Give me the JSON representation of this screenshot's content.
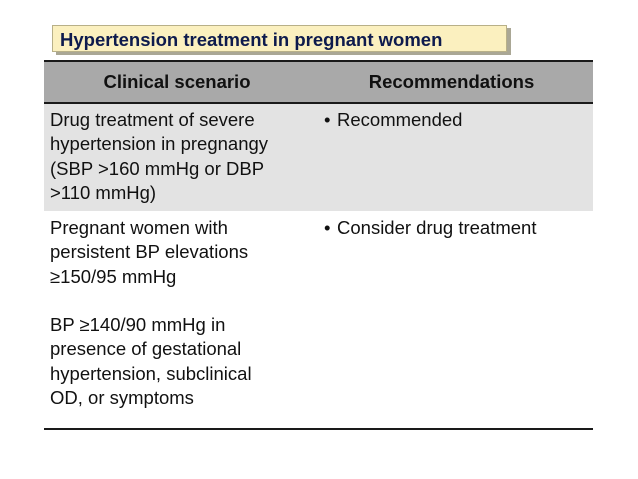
{
  "title": "Hypertension treatment in pregnant women",
  "table": {
    "headers": [
      "Clinical scenario",
      "Recommendations"
    ],
    "rows": [
      {
        "scenario_lines": [
          "Drug treatment of severe",
          "hypertension in pregnangy",
          "(SBP >160 mmHg or DBP",
          ">110 mmHg)"
        ],
        "recommendation": "Recommended"
      },
      {
        "scenario_lines_a": [
          "Pregnant women with",
          "persistent BP elevations",
          "≥150/95 mmHg"
        ],
        "scenario_lines_b": [
          "BP ≥140/90 mmHg in",
          "presence of gestational",
          "hypertension, subclinical",
          "OD, or symptoms"
        ],
        "recommendation": "Consider drug treatment"
      }
    ]
  },
  "bullet_glyph": "•",
  "colors": {
    "title_bg": "#fbf0bf",
    "title_text": "#0e1b4d",
    "header_bg": "#a9a9a9",
    "row1_bg": "#e3e3e3"
  }
}
